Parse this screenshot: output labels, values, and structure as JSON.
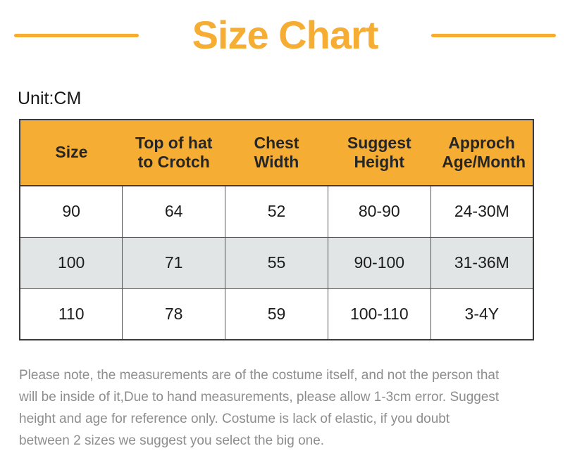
{
  "title": "Size Chart",
  "unit_label": "Unit:CM",
  "table": {
    "columns": [
      "Size",
      "Top of hat to Crotch",
      "Chest Width",
      "Suggest Height",
      "Approch Age/Month"
    ],
    "rows": [
      [
        "90",
        "64",
        "52",
        "80-90",
        "24-30M"
      ],
      [
        "100",
        "71",
        "55",
        "90-100",
        "31-36M"
      ],
      [
        "110",
        "78",
        "59",
        "100-110",
        "3-4Y"
      ]
    ]
  },
  "footer": {
    "lines": [
      "Please note, the measurements are of the costume itself, and not the person that",
      "will be inside of it,Due to hand measurements, please allow 1-3cm error. Suggest",
      "height and age for reference only. Costume is lack of elastic, if you doubt",
      "between 2 sizes we suggest you select the big one."
    ]
  },
  "colors": {
    "accent": "#F6AD33",
    "row_alt": "#E1E5E6",
    "border": "#3B3B3B",
    "muted": "#8D8D8D"
  }
}
